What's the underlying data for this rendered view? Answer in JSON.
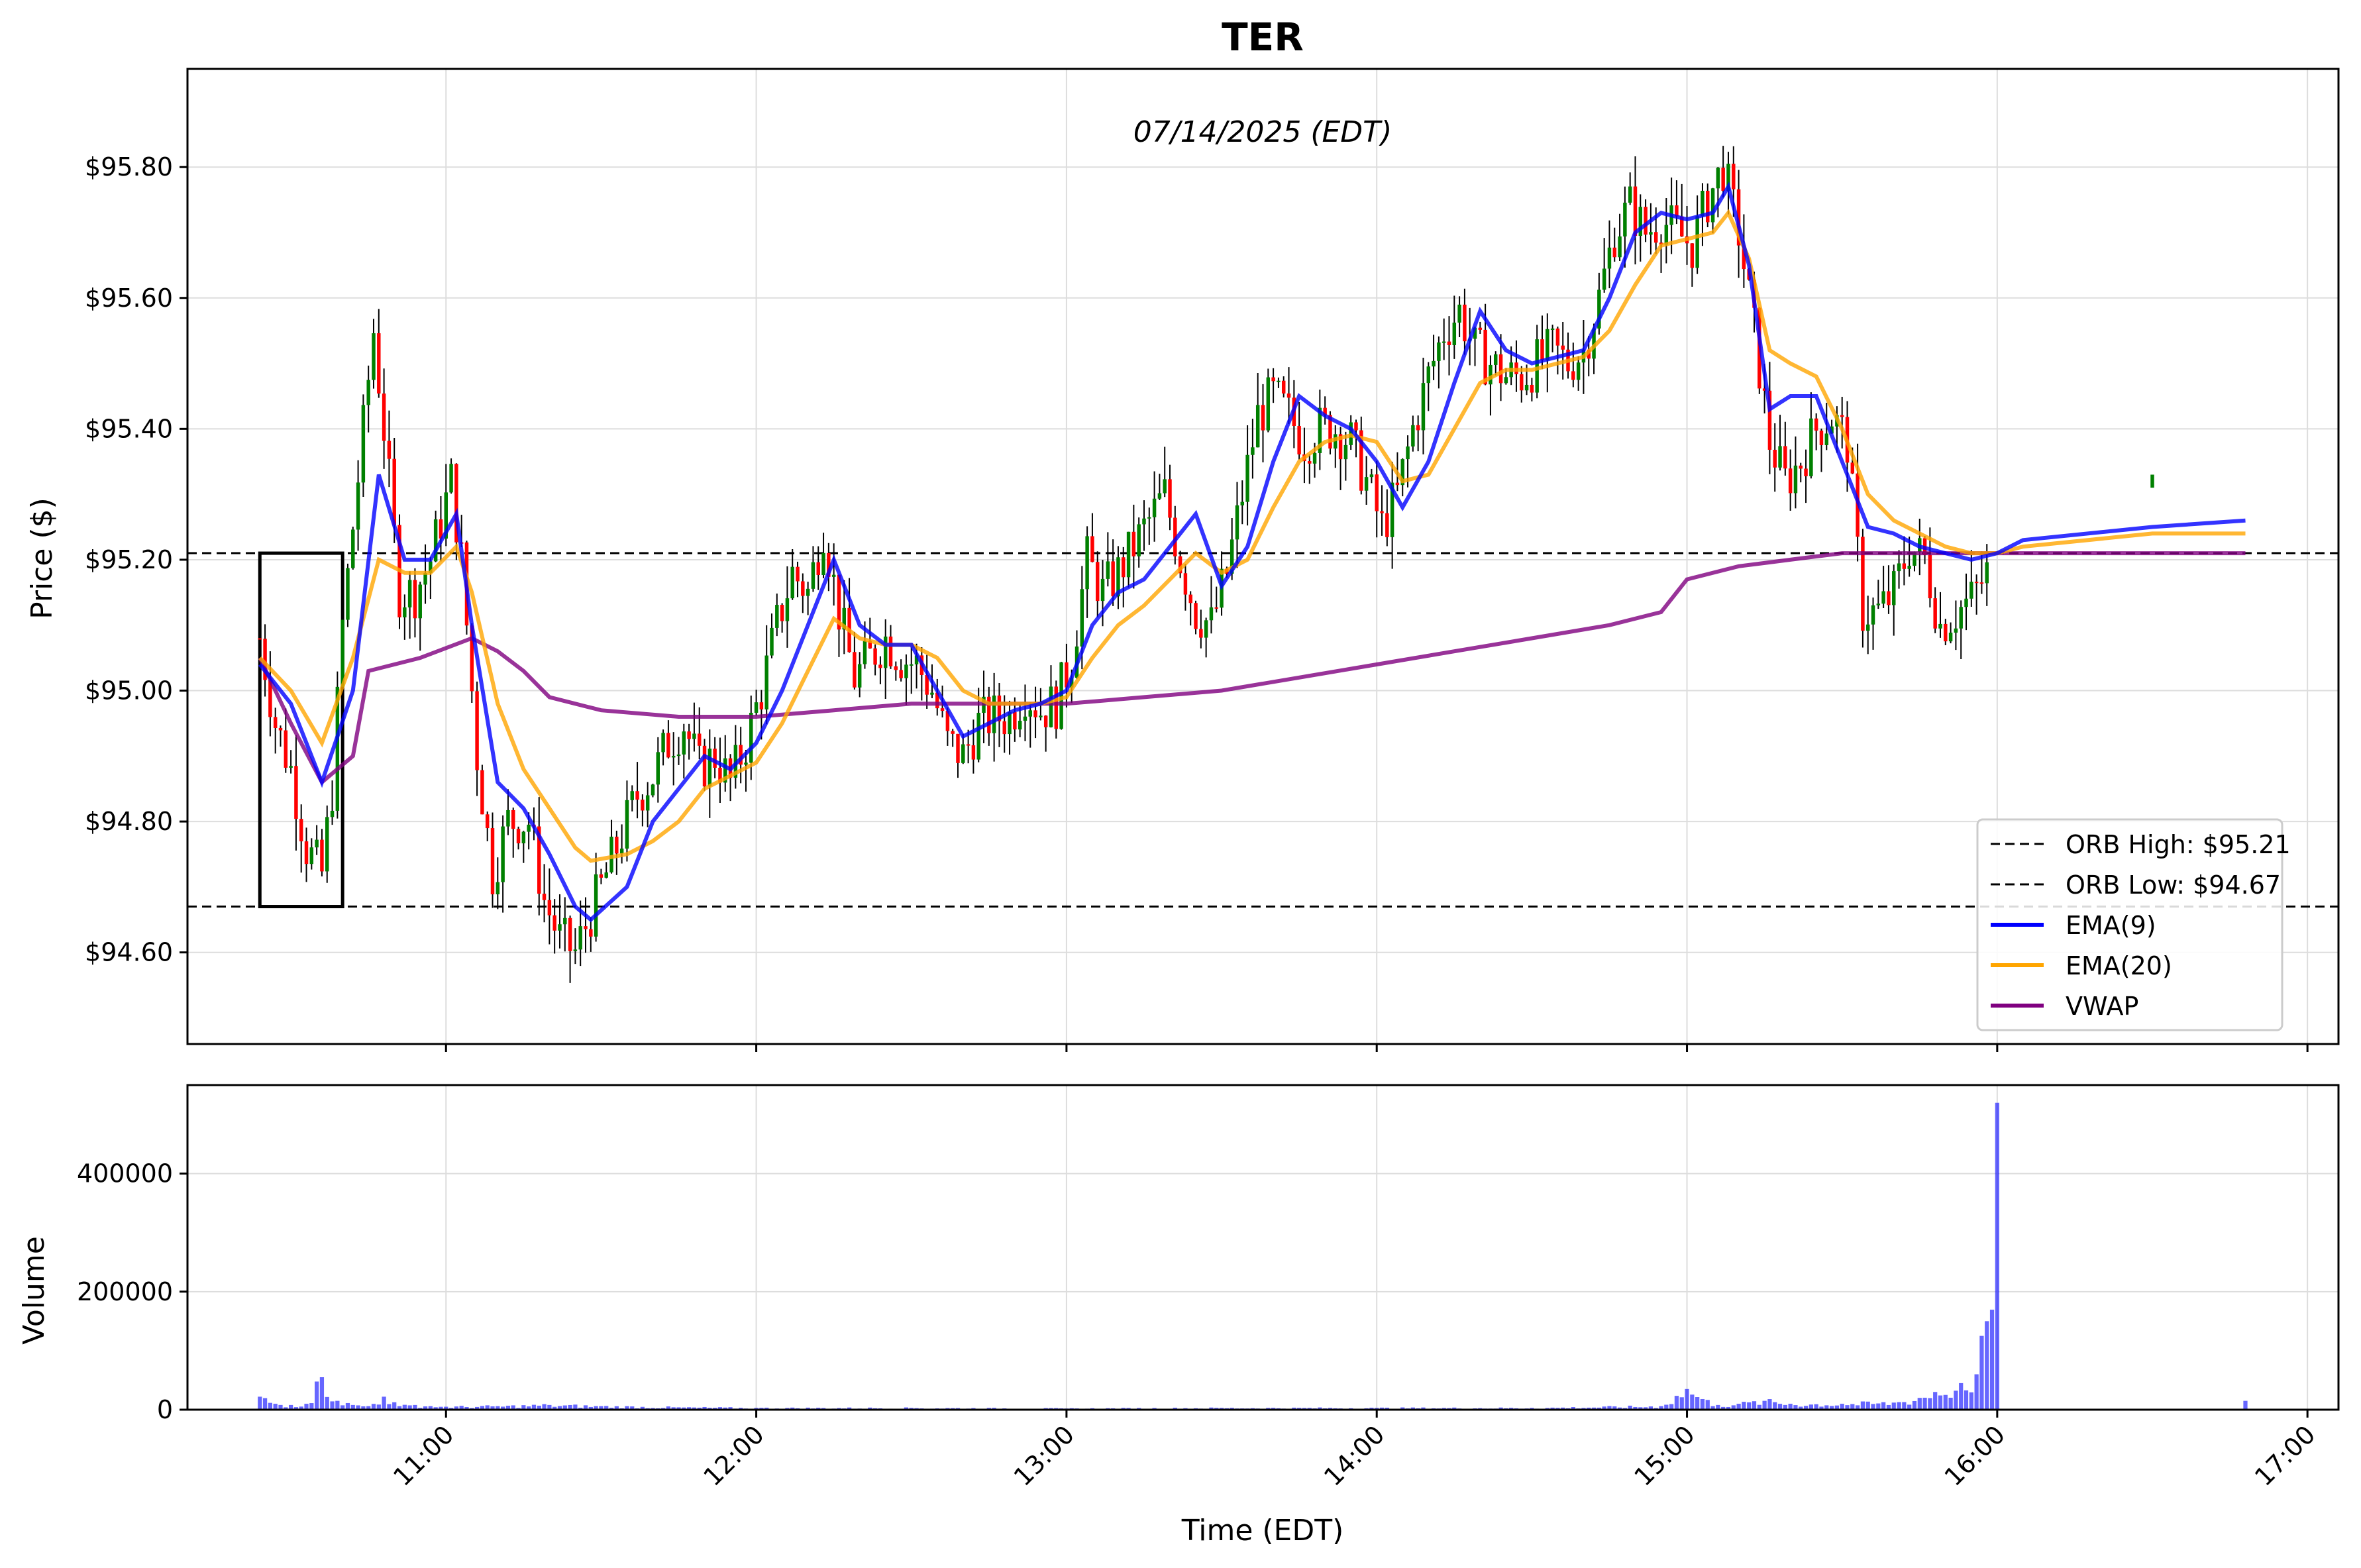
{
  "chart_data": {
    "type": "candlestick",
    "title": "TER",
    "subtitle": "07/14/2025 (EDT)",
    "xlabel": "Time (EDT)",
    "ylabel": "Price ($)",
    "volume_ylabel": "Volume",
    "grid": true,
    "legend_position": "lower-right",
    "colors": {
      "up": "#008000",
      "down": "#ff0000",
      "ema9": "#0000ff",
      "ema20": "#ffa500",
      "vwap": "#800080",
      "volume": "#0000ff"
    },
    "x_range": [
      "10:10",
      "17:06"
    ],
    "price_range": [
      94.46,
      95.95
    ],
    "volume_range": [
      0,
      550000
    ],
    "x_ticks": [
      "11:00",
      "12:00",
      "13:00",
      "14:00",
      "15:00",
      "16:00",
      "17:00"
    ],
    "price_ticks": [
      "$94.60",
      "$94.80",
      "$95.00",
      "$95.20",
      "$95.40",
      "$95.60",
      "$95.80"
    ],
    "volume_ticks": [
      "0",
      "200000",
      "400000"
    ],
    "orb": {
      "high": 95.21,
      "low": 94.67,
      "start": "10:24",
      "end": "10:40"
    },
    "legend": [
      {
        "label": "ORB High: $95.21",
        "style": "dashed",
        "color": "#000000"
      },
      {
        "label": "ORB Low: $94.67",
        "style": "dashed",
        "color": "#000000"
      },
      {
        "label": "EMA(9)",
        "style": "solid",
        "color": "#0000ff"
      },
      {
        "label": "EMA(20)",
        "style": "solid",
        "color": "#ffa500"
      },
      {
        "label": "VWAP",
        "style": "solid",
        "color": "#800080"
      }
    ],
    "ema9": [
      [
        "10:24",
        95.04
      ],
      [
        "10:30",
        94.98
      ],
      [
        "10:36",
        94.86
      ],
      [
        "10:42",
        95.0
      ],
      [
        "10:47",
        95.33
      ],
      [
        "10:52",
        95.2
      ],
      [
        "10:57",
        95.2
      ],
      [
        "11:02",
        95.27
      ],
      [
        "11:05",
        95.1
      ],
      [
        "11:10",
        94.86
      ],
      [
        "11:15",
        94.82
      ],
      [
        "11:20",
        94.75
      ],
      [
        "11:25",
        94.67
      ],
      [
        "11:28",
        94.65
      ],
      [
        "11:35",
        94.7
      ],
      [
        "11:40",
        94.8
      ],
      [
        "11:45",
        94.85
      ],
      [
        "11:50",
        94.9
      ],
      [
        "11:55",
        94.88
      ],
      [
        "12:00",
        94.92
      ],
      [
        "12:05",
        95.0
      ],
      [
        "12:10",
        95.1
      ],
      [
        "12:15",
        95.2
      ],
      [
        "12:20",
        95.1
      ],
      [
        "12:25",
        95.07
      ],
      [
        "12:30",
        95.07
      ],
      [
        "12:35",
        95.0
      ],
      [
        "12:40",
        94.93
      ],
      [
        "12:45",
        94.95
      ],
      [
        "12:50",
        94.97
      ],
      [
        "12:55",
        94.98
      ],
      [
        "13:00",
        95.0
      ],
      [
        "13:05",
        95.1
      ],
      [
        "13:10",
        95.15
      ],
      [
        "13:15",
        95.17
      ],
      [
        "13:20",
        95.22
      ],
      [
        "13:25",
        95.27
      ],
      [
        "13:30",
        95.16
      ],
      [
        "13:35",
        95.22
      ],
      [
        "13:40",
        95.35
      ],
      [
        "13:45",
        95.45
      ],
      [
        "13:50",
        95.42
      ],
      [
        "13:55",
        95.4
      ],
      [
        "14:00",
        95.35
      ],
      [
        "14:05",
        95.28
      ],
      [
        "14:10",
        95.35
      ],
      [
        "14:15",
        95.47
      ],
      [
        "14:20",
        95.58
      ],
      [
        "14:25",
        95.52
      ],
      [
        "14:30",
        95.5
      ],
      [
        "14:40",
        95.52
      ],
      [
        "14:45",
        95.6
      ],
      [
        "14:50",
        95.7
      ],
      [
        "14:55",
        95.73
      ],
      [
        "15:00",
        95.72
      ],
      [
        "15:05",
        95.73
      ],
      [
        "15:08",
        95.77
      ],
      [
        "15:12",
        95.65
      ],
      [
        "15:16",
        95.43
      ],
      [
        "15:20",
        95.45
      ],
      [
        "15:25",
        95.45
      ],
      [
        "15:30",
        95.35
      ],
      [
        "15:35",
        95.25
      ],
      [
        "15:40",
        95.24
      ],
      [
        "15:45",
        95.22
      ],
      [
        "15:50",
        95.21
      ],
      [
        "15:55",
        95.2
      ],
      [
        "16:00",
        95.21
      ],
      [
        "16:05",
        95.23
      ],
      [
        "16:30",
        95.25
      ],
      [
        "16:48",
        95.26
      ]
    ],
    "ema20": [
      [
        "10:24",
        95.05
      ],
      [
        "10:30",
        95.0
      ],
      [
        "10:36",
        94.92
      ],
      [
        "10:42",
        95.05
      ],
      [
        "10:47",
        95.2
      ],
      [
        "10:52",
        95.18
      ],
      [
        "10:57",
        95.18
      ],
      [
        "11:02",
        95.22
      ],
      [
        "11:05",
        95.15
      ],
      [
        "11:10",
        94.98
      ],
      [
        "11:15",
        94.88
      ],
      [
        "11:20",
        94.82
      ],
      [
        "11:25",
        94.76
      ],
      [
        "11:28",
        94.74
      ],
      [
        "11:35",
        94.75
      ],
      [
        "11:40",
        94.77
      ],
      [
        "11:45",
        94.8
      ],
      [
        "11:50",
        94.85
      ],
      [
        "11:55",
        94.87
      ],
      [
        "12:00",
        94.89
      ],
      [
        "12:05",
        94.95
      ],
      [
        "12:10",
        95.03
      ],
      [
        "12:15",
        95.11
      ],
      [
        "12:20",
        95.08
      ],
      [
        "12:25",
        95.07
      ],
      [
        "12:30",
        95.07
      ],
      [
        "12:35",
        95.05
      ],
      [
        "12:40",
        95.0
      ],
      [
        "12:45",
        94.98
      ],
      [
        "12:50",
        94.98
      ],
      [
        "12:55",
        94.98
      ],
      [
        "13:00",
        94.99
      ],
      [
        "13:05",
        95.05
      ],
      [
        "13:10",
        95.1
      ],
      [
        "13:15",
        95.13
      ],
      [
        "13:20",
        95.17
      ],
      [
        "13:25",
        95.21
      ],
      [
        "13:30",
        95.18
      ],
      [
        "13:35",
        95.2
      ],
      [
        "13:40",
        95.28
      ],
      [
        "13:45",
        95.35
      ],
      [
        "13:50",
        95.38
      ],
      [
        "13:55",
        95.39
      ],
      [
        "14:00",
        95.38
      ],
      [
        "14:05",
        95.32
      ],
      [
        "14:10",
        95.33
      ],
      [
        "14:15",
        95.4
      ],
      [
        "14:20",
        95.47
      ],
      [
        "14:25",
        95.49
      ],
      [
        "14:30",
        95.49
      ],
      [
        "14:40",
        95.51
      ],
      [
        "14:45",
        95.55
      ],
      [
        "14:50",
        95.62
      ],
      [
        "14:55",
        95.68
      ],
      [
        "15:00",
        95.69
      ],
      [
        "15:05",
        95.7
      ],
      [
        "15:08",
        95.73
      ],
      [
        "15:12",
        95.66
      ],
      [
        "15:16",
        95.52
      ],
      [
        "15:20",
        95.5
      ],
      [
        "15:25",
        95.48
      ],
      [
        "15:30",
        95.4
      ],
      [
        "15:35",
        95.3
      ],
      [
        "15:40",
        95.26
      ],
      [
        "15:45",
        95.24
      ],
      [
        "15:50",
        95.22
      ],
      [
        "15:55",
        95.21
      ],
      [
        "16:00",
        95.21
      ],
      [
        "16:05",
        95.22
      ],
      [
        "16:30",
        95.24
      ],
      [
        "16:48",
        95.24
      ]
    ],
    "vwap": [
      [
        "10:24",
        95.05
      ],
      [
        "10:30",
        94.95
      ],
      [
        "10:36",
        94.86
      ],
      [
        "10:42",
        94.9
      ],
      [
        "10:45",
        95.03
      ],
      [
        "10:55",
        95.05
      ],
      [
        "11:05",
        95.08
      ],
      [
        "11:10",
        95.06
      ],
      [
        "11:15",
        95.03
      ],
      [
        "11:20",
        94.99
      ],
      [
        "11:25",
        94.98
      ],
      [
        "11:30",
        94.97
      ],
      [
        "11:45",
        94.96
      ],
      [
        "12:00",
        94.96
      ],
      [
        "12:15",
        94.97
      ],
      [
        "12:30",
        94.98
      ],
      [
        "12:45",
        94.98
      ],
      [
        "13:00",
        94.98
      ],
      [
        "13:15",
        94.99
      ],
      [
        "13:30",
        95.0
      ],
      [
        "13:45",
        95.02
      ],
      [
        "14:00",
        95.04
      ],
      [
        "14:15",
        95.06
      ],
      [
        "14:30",
        95.08
      ],
      [
        "14:45",
        95.1
      ],
      [
        "14:55",
        95.12
      ],
      [
        "15:00",
        95.17
      ],
      [
        "15:10",
        95.19
      ],
      [
        "15:20",
        95.2
      ],
      [
        "15:30",
        95.21
      ],
      [
        "15:45",
        95.21
      ],
      [
        "16:00",
        95.21
      ],
      [
        "16:48",
        95.21
      ]
    ],
    "candle_anchors": [
      [
        "10:24",
        95.08
      ],
      [
        "10:27",
        94.95
      ],
      [
        "10:30",
        94.88
      ],
      [
        "10:33",
        94.76
      ],
      [
        "10:36",
        94.72
      ],
      [
        "10:38",
        94.85
      ],
      [
        "10:40",
        95.1
      ],
      [
        "10:44",
        95.4
      ],
      [
        "10:46",
        95.55
      ],
      [
        "10:48",
        95.4
      ],
      [
        "10:51",
        95.15
      ],
      [
        "10:54",
        95.15
      ],
      [
        "10:57",
        95.2
      ],
      [
        "11:01",
        95.32
      ],
      [
        "11:03",
        95.2
      ],
      [
        "11:06",
        94.9
      ],
      [
        "11:09",
        94.72
      ],
      [
        "11:12",
        94.8
      ],
      [
        "11:16",
        94.8
      ],
      [
        "11:19",
        94.68
      ],
      [
        "11:22",
        94.62
      ],
      [
        "11:25",
        94.6
      ],
      [
        "11:28",
        94.66
      ],
      [
        "11:31",
        94.72
      ],
      [
        "11:34",
        94.78
      ],
      [
        "11:37",
        94.84
      ],
      [
        "11:40",
        94.87
      ],
      [
        "11:43",
        94.92
      ],
      [
        "11:46",
        94.95
      ],
      [
        "11:49",
        94.88
      ],
      [
        "11:52",
        94.9
      ],
      [
        "11:55",
        94.86
      ],
      [
        "11:58",
        94.92
      ],
      [
        "12:01",
        95.0
      ],
      [
        "12:04",
        95.1
      ],
      [
        "12:07",
        95.18
      ],
      [
        "12:10",
        95.15
      ],
      [
        "12:13",
        95.25
      ],
      [
        "12:16",
        95.12
      ],
      [
        "12:19",
        95.02
      ],
      [
        "12:22",
        95.05
      ],
      [
        "12:25",
        95.08
      ],
      [
        "12:28",
        95.05
      ],
      [
        "12:31",
        95.04
      ],
      [
        "12:34",
        95.0
      ],
      [
        "12:37",
        94.92
      ],
      [
        "12:40",
        94.9
      ],
      [
        "12:43",
        94.95
      ],
      [
        "12:46",
        94.96
      ],
      [
        "12:49",
        94.96
      ],
      [
        "12:52",
        95.0
      ],
      [
        "12:55",
        94.97
      ],
      [
        "12:58",
        94.98
      ],
      [
        "13:01",
        95.05
      ],
      [
        "13:04",
        95.2
      ],
      [
        "13:07",
        95.15
      ],
      [
        "13:10",
        95.18
      ],
      [
        "13:13",
        95.22
      ],
      [
        "13:16",
        95.26
      ],
      [
        "13:19",
        95.3
      ],
      [
        "13:22",
        95.2
      ],
      [
        "13:25",
        95.12
      ],
      [
        "13:28",
        95.1
      ],
      [
        "13:31",
        95.18
      ],
      [
        "13:34",
        95.3
      ],
      [
        "13:37",
        95.42
      ],
      [
        "13:40",
        95.45
      ],
      [
        "13:43",
        95.42
      ],
      [
        "13:46",
        95.38
      ],
      [
        "13:49",
        95.4
      ],
      [
        "13:52",
        95.4
      ],
      [
        "13:55",
        95.38
      ],
      [
        "13:58",
        95.32
      ],
      [
        "14:01",
        95.25
      ],
      [
        "14:04",
        95.3
      ],
      [
        "14:07",
        95.4
      ],
      [
        "14:10",
        95.48
      ],
      [
        "14:13",
        95.55
      ],
      [
        "14:16",
        95.58
      ],
      [
        "14:19",
        95.52
      ],
      [
        "14:22",
        95.5
      ],
      [
        "14:25",
        95.48
      ],
      [
        "14:28",
        95.48
      ],
      [
        "14:31",
        95.5
      ],
      [
        "14:34",
        95.52
      ],
      [
        "14:37",
        95.5
      ],
      [
        "14:40",
        95.52
      ],
      [
        "14:43",
        95.6
      ],
      [
        "14:46",
        95.7
      ],
      [
        "14:49",
        95.74
      ],
      [
        "14:52",
        95.7
      ],
      [
        "14:55",
        95.72
      ],
      [
        "14:58",
        95.7
      ],
      [
        "15:01",
        95.68
      ],
      [
        "15:04",
        95.75
      ],
      [
        "15:07",
        95.8
      ],
      [
        "15:10",
        95.7
      ],
      [
        "15:13",
        95.55
      ],
      [
        "15:16",
        95.38
      ],
      [
        "15:19",
        95.32
      ],
      [
        "15:22",
        95.35
      ],
      [
        "15:25",
        95.4
      ],
      [
        "15:28",
        95.42
      ],
      [
        "15:31",
        95.38
      ],
      [
        "15:34",
        95.12
      ],
      [
        "15:37",
        95.12
      ],
      [
        "15:40",
        95.15
      ],
      [
        "15:43",
        95.22
      ],
      [
        "15:46",
        95.2
      ],
      [
        "15:49",
        95.1
      ],
      [
        "15:52",
        95.12
      ],
      [
        "15:55",
        95.14
      ],
      [
        "15:58",
        95.18
      ]
    ],
    "late_candles": [
      [
        "16:30",
        95.33,
        95.31
      ]
    ],
    "volume_anchors": [
      [
        "10:24",
        22000
      ],
      [
        "10:27",
        10000
      ],
      [
        "10:30",
        8000
      ],
      [
        "10:33",
        10000
      ],
      [
        "10:36",
        55000
      ],
      [
        "10:39",
        15000
      ],
      [
        "10:42",
        8000
      ],
      [
        "10:45",
        6000
      ],
      [
        "10:48",
        22000
      ],
      [
        "10:51",
        6000
      ],
      [
        "10:54",
        8000
      ],
      [
        "10:57",
        6000
      ],
      [
        "11:00",
        5000
      ],
      [
        "11:10",
        6000
      ],
      [
        "11:20",
        8000
      ],
      [
        "11:30",
        6000
      ],
      [
        "11:45",
        4000
      ],
      [
        "12:00",
        3000
      ],
      [
        "12:30",
        3000
      ],
      [
        "13:00",
        2000
      ],
      [
        "13:30",
        3000
      ],
      [
        "14:00",
        3000
      ],
      [
        "14:30",
        3000
      ],
      [
        "14:55",
        6000
      ],
      [
        "15:00",
        35000
      ],
      [
        "15:03",
        18000
      ],
      [
        "15:06",
        8000
      ],
      [
        "15:10",
        10000
      ],
      [
        "15:15",
        15000
      ],
      [
        "15:20",
        10000
      ],
      [
        "15:30",
        10000
      ],
      [
        "15:40",
        12000
      ],
      [
        "15:45",
        20000
      ],
      [
        "15:48",
        30000
      ],
      [
        "15:50",
        25000
      ],
      [
        "15:53",
        45000
      ],
      [
        "15:56",
        60000
      ],
      [
        "15:58",
        150000
      ],
      [
        "16:00",
        520000
      ]
    ],
    "late_volume": [
      [
        "16:48",
        15000
      ]
    ]
  }
}
